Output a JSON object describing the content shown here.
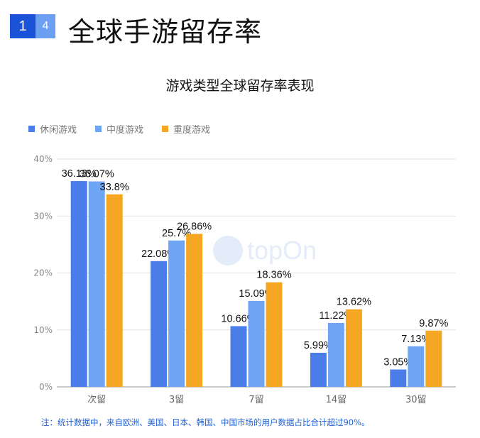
{
  "header": {
    "badge_primary": "1",
    "badge_secondary": "4",
    "title": "全球手游留存率"
  },
  "watermark": {
    "text": "topOn"
  },
  "footnote": "注：统计数据中，来自欧洲、美国、日本、韩国、中国市场的用户数据占比合计超过90%。",
  "chart_data": {
    "type": "bar",
    "title": "游戏类型全球留存率表现",
    "xlabel": "",
    "ylabel": "",
    "categories": [
      "次留",
      "3留",
      "7留",
      "14留",
      "30留"
    ],
    "ylim": [
      0,
      40
    ],
    "yticks": [
      0,
      10,
      20,
      30,
      40
    ],
    "ytick_suffix": "%",
    "grid": true,
    "legend_position": "top-left",
    "series": [
      {
        "name": "休闲游戏",
        "color": "#4a7de8",
        "values": [
          36.13,
          22.08,
          10.66,
          5.99,
          3.05
        ],
        "labels": [
          "36.13%",
          "22.08%",
          "10.66%",
          "5.99%",
          "3.05%"
        ]
      },
      {
        "name": "中度游戏",
        "color": "#6ea5f5",
        "values": [
          36.07,
          25.7,
          15.09,
          11.22,
          7.13
        ],
        "labels": [
          "36.07%",
          "25.7%",
          "15.09%",
          "11.22%",
          "7.13%"
        ]
      },
      {
        "name": "重度游戏",
        "color": "#f5a623",
        "values": [
          33.8,
          26.86,
          18.36,
          13.62,
          9.87
        ],
        "labels": [
          "33.8%",
          "26.86%",
          "18.36%",
          "13.62%",
          "9.87%"
        ]
      }
    ]
  }
}
